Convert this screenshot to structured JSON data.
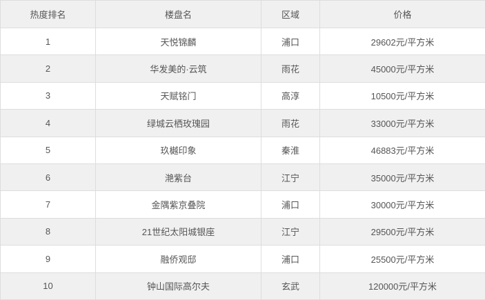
{
  "table": {
    "headers": [
      "热度排名",
      "楼盘名",
      "区域",
      "价格"
    ],
    "rows": [
      {
        "rank": "1",
        "name": "天悦锦麟",
        "region": "浦口",
        "price": "29602元/平方米"
      },
      {
        "rank": "2",
        "name": "华发美的·云筑",
        "region": "雨花",
        "price": "45000元/平方米"
      },
      {
        "rank": "3",
        "name": "天赋铭门",
        "region": "高淳",
        "price": "10500元/平方米"
      },
      {
        "rank": "4",
        "name": "绿城云栖玫瑰园",
        "region": "雨花",
        "price": "33000元/平方米"
      },
      {
        "rank": "5",
        "name": "玖樾印象",
        "region": "秦淮",
        "price": "46883元/平方米"
      },
      {
        "rank": "6",
        "name": "滟紫台",
        "region": "江宁",
        "price": "35000元/平方米"
      },
      {
        "rank": "7",
        "name": "金隅紫京叠院",
        "region": "浦口",
        "price": "30000元/平方米"
      },
      {
        "rank": "8",
        "name": "21世纪太阳城银座",
        "region": "江宁",
        "price": "29500元/平方米"
      },
      {
        "rank": "9",
        "name": "融侨观邸",
        "region": "浦口",
        "price": "25500元/平方米"
      },
      {
        "rank": "10",
        "name": "钟山国际高尔夫",
        "region": "玄武",
        "price": "120000元/平方米"
      }
    ]
  },
  "colors": {
    "header_bg": "#f0f0f0",
    "stripe_bg": "#f0f0f0",
    "border": "#dddddd",
    "text": "#555555"
  }
}
